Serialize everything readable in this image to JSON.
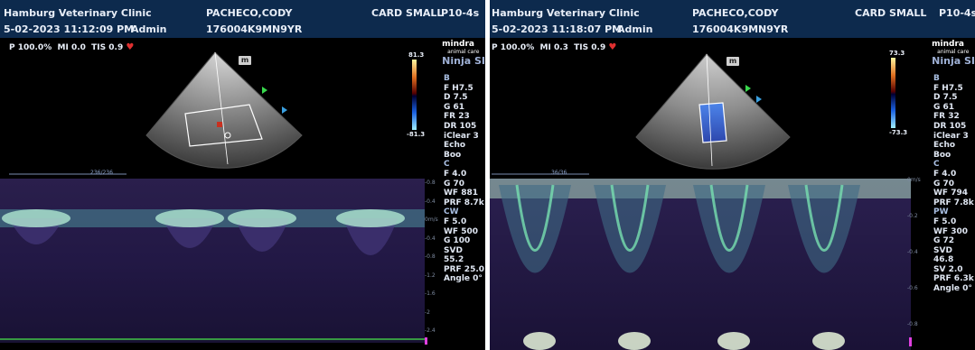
{
  "left": {
    "clinic": "Hamburg Veterinary Clinic",
    "patient": "PACHECO,CODY",
    "preset": "CARD SMALL",
    "probe": "P10-4s",
    "datetime": "5-02-2023  11:12:09 PM",
    "operator": "Admin",
    "patient_id": "176004K9MN9YR",
    "power": "P 100.0%",
    "mi": "MI 0.0",
    "tis": "TIS 0.9",
    "logo": "mindra",
    "logo_sub": "animal care",
    "model": "Ninja SI",
    "color_max": "81.3",
    "color_min": "-81.3",
    "timeline": "236/236",
    "params": [
      {
        "t": "B",
        "sec": true
      },
      {
        "t": "F H7.5"
      },
      {
        "t": "D 7.5"
      },
      {
        "t": "G 61"
      },
      {
        "t": "FR 23"
      },
      {
        "t": "DR 105"
      },
      {
        "t": "iClear 3"
      },
      {
        "t": "Echo Boo"
      },
      {
        "t": "C",
        "sec": true
      },
      {
        "t": "F 4.0"
      },
      {
        "t": "G 70"
      },
      {
        "t": "WF 881"
      },
      {
        "t": "PRF 8.7k"
      },
      {
        "t": "CW",
        "sec": true
      },
      {
        "t": "F 5.0"
      },
      {
        "t": "WF 500"
      },
      {
        "t": "G 100"
      },
      {
        "t": "SVD 55.2"
      },
      {
        "t": "PRF 25.0"
      },
      {
        "t": "Angle 0°"
      }
    ],
    "scale_unit": "m/s",
    "scale_ticks": [
      "-0.8",
      "-0.4",
      "0m/s",
      "-0.4",
      "-0.8",
      "-1.2",
      "-1.6",
      "-2",
      "-2.4"
    ]
  },
  "right": {
    "clinic": "Hamburg Veterinary Clinic",
    "patient": "PACHECO,CODY",
    "preset": "CARD SMALL",
    "probe": "P10-4s",
    "datetime": "5-02-2023  11:18:07 PM",
    "operator": "Admin",
    "patient_id": "176004K9MN9YR",
    "power": "P 100.0%",
    "mi": "MI 0.3",
    "tis": "TIS 0.9",
    "logo": "mindra",
    "logo_sub": "animal care",
    "model": "Ninja SI",
    "color_max": "73.3",
    "color_min": "-73.3",
    "timeline": "36/36",
    "params": [
      {
        "t": "B",
        "sec": true
      },
      {
        "t": "F H7.5"
      },
      {
        "t": "D 7.5"
      },
      {
        "t": "G 61"
      },
      {
        "t": "FR 32"
      },
      {
        "t": "DR 105"
      },
      {
        "t": "iClear 3"
      },
      {
        "t": "Echo Boo"
      },
      {
        "t": "C",
        "sec": true
      },
      {
        "t": "F 4.0"
      },
      {
        "t": "G 70"
      },
      {
        "t": "WF 794"
      },
      {
        "t": "PRF 7.8k"
      },
      {
        "t": "PW",
        "sec": true
      },
      {
        "t": "F 5.0"
      },
      {
        "t": "WF 300"
      },
      {
        "t": "G 72"
      },
      {
        "t": "SVD 46.8"
      },
      {
        "t": "SV 2.0"
      },
      {
        "t": "PRF 6.3k"
      },
      {
        "t": "Angle 0°"
      }
    ],
    "scale_unit": "m/s",
    "scale_ticks": [
      "0m/s",
      "-0.2",
      "-0.4",
      "-0.6",
      "-0.8"
    ]
  },
  "colors": {
    "header": "#0d2a4d",
    "spectrum": "#1b1338",
    "doppler": "#6de0c0",
    "heart": "#e03030"
  }
}
